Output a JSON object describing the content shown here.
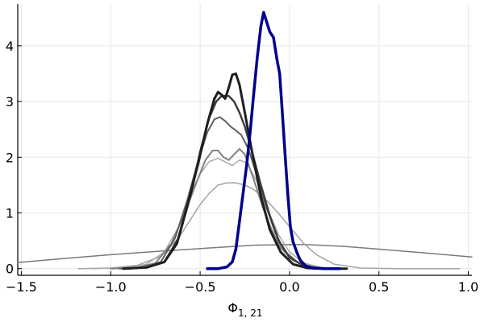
{
  "chart_data": {
    "type": "line",
    "title": "",
    "xlabel": "Φ",
    "xlabel_subscript": "1, 21",
    "ylabel": "",
    "xlim": [
      -1.52,
      1.02
    ],
    "ylim": [
      -0.12,
      4.75
    ],
    "grid": true,
    "legend": "none",
    "x_ticks": [
      -1.5,
      -1.0,
      -0.5,
      0.0,
      0.5,
      1.0
    ],
    "x_tick_labels": [
      "−1.5",
      "−1.0",
      "−0.5",
      "0.0",
      "0.5",
      "1.0"
    ],
    "y_ticks": [
      0,
      1,
      2,
      3,
      4
    ],
    "y_tick_labels": [
      "0",
      "1",
      "2",
      "3",
      "4"
    ],
    "series": [
      {
        "color": "#7a7a7a",
        "stroke": 1.5,
        "points": [
          [
            -1.52,
            0.11
          ],
          [
            -1.3,
            0.17
          ],
          [
            -1.0,
            0.25
          ],
          [
            -0.7,
            0.32
          ],
          [
            -0.4,
            0.38
          ],
          [
            -0.2,
            0.42
          ],
          [
            0.0,
            0.43
          ],
          [
            0.1,
            0.43
          ],
          [
            0.3,
            0.4
          ],
          [
            0.5,
            0.35
          ],
          [
            0.8,
            0.27
          ],
          [
            1.02,
            0.21
          ]
        ]
      },
      {
        "color": "#a3a3a3",
        "stroke": 1.5,
        "points": [
          [
            -1.18,
            0.0
          ],
          [
            -1.0,
            0.01
          ],
          [
            -0.85,
            0.06
          ],
          [
            -0.72,
            0.22
          ],
          [
            -0.62,
            0.55
          ],
          [
            -0.55,
            0.9
          ],
          [
            -0.5,
            1.15
          ],
          [
            -0.45,
            1.35
          ],
          [
            -0.4,
            1.5
          ],
          [
            -0.35,
            1.54
          ],
          [
            -0.3,
            1.54
          ],
          [
            -0.25,
            1.5
          ],
          [
            -0.2,
            1.42
          ],
          [
            -0.12,
            1.2
          ],
          [
            -0.05,
            0.95
          ],
          [
            0.02,
            0.68
          ],
          [
            0.08,
            0.45
          ],
          [
            0.15,
            0.25
          ],
          [
            0.25,
            0.08
          ],
          [
            0.4,
            0.01
          ],
          [
            0.6,
            0.0
          ],
          [
            0.95,
            0.0
          ]
        ]
      },
      {
        "color": "#aaaaaa",
        "stroke": 1.5,
        "points": [
          [
            -1.1,
            0.0
          ],
          [
            -0.9,
            0.02
          ],
          [
            -0.8,
            0.08
          ],
          [
            -0.7,
            0.3
          ],
          [
            -0.62,
            0.75
          ],
          [
            -0.56,
            1.3
          ],
          [
            -0.5,
            1.7
          ],
          [
            -0.45,
            1.92
          ],
          [
            -0.4,
            1.98
          ],
          [
            -0.35,
            1.9
          ],
          [
            -0.32,
            1.85
          ],
          [
            -0.28,
            1.95
          ],
          [
            -0.24,
            1.9
          ],
          [
            -0.18,
            1.55
          ],
          [
            -0.12,
            1.05
          ],
          [
            -0.06,
            0.6
          ],
          [
            0.0,
            0.3
          ],
          [
            0.08,
            0.1
          ],
          [
            0.18,
            0.02
          ],
          [
            0.3,
            0.0
          ]
        ]
      },
      {
        "color": "#808080",
        "stroke": 2,
        "points": [
          [
            -1.0,
            0.0
          ],
          [
            -0.85,
            0.02
          ],
          [
            -0.75,
            0.1
          ],
          [
            -0.66,
            0.45
          ],
          [
            -0.58,
            1.05
          ],
          [
            -0.52,
            1.55
          ],
          [
            -0.47,
            1.95
          ],
          [
            -0.43,
            2.12
          ],
          [
            -0.4,
            2.12
          ],
          [
            -0.37,
            2.0
          ],
          [
            -0.34,
            1.95
          ],
          [
            -0.31,
            2.05
          ],
          [
            -0.28,
            2.15
          ],
          [
            -0.25,
            2.05
          ],
          [
            -0.2,
            1.6
          ],
          [
            -0.15,
            1.1
          ],
          [
            -0.1,
            0.7
          ],
          [
            -0.05,
            0.38
          ],
          [
            0.02,
            0.15
          ],
          [
            0.1,
            0.04
          ],
          [
            0.22,
            0.0
          ]
        ]
      },
      {
        "color": "#5e5e5e",
        "stroke": 2,
        "points": [
          [
            -0.95,
            0.0
          ],
          [
            -0.82,
            0.02
          ],
          [
            -0.72,
            0.12
          ],
          [
            -0.64,
            0.55
          ],
          [
            -0.57,
            1.25
          ],
          [
            -0.51,
            1.95
          ],
          [
            -0.46,
            2.45
          ],
          [
            -0.42,
            2.68
          ],
          [
            -0.39,
            2.72
          ],
          [
            -0.36,
            2.65
          ],
          [
            -0.33,
            2.55
          ],
          [
            -0.3,
            2.48
          ],
          [
            -0.27,
            2.4
          ],
          [
            -0.23,
            2.15
          ],
          [
            -0.18,
            1.65
          ],
          [
            -0.13,
            1.1
          ],
          [
            -0.08,
            0.65
          ],
          [
            -0.03,
            0.32
          ],
          [
            0.05,
            0.1
          ],
          [
            0.15,
            0.01
          ],
          [
            0.25,
            0.0
          ]
        ]
      },
      {
        "color": "#3e3e3e",
        "stroke": 2.5,
        "points": [
          [
            -0.92,
            0.0
          ],
          [
            -0.8,
            0.02
          ],
          [
            -0.7,
            0.12
          ],
          [
            -0.62,
            0.55
          ],
          [
            -0.55,
            1.35
          ],
          [
            -0.5,
            2.1
          ],
          [
            -0.45,
            2.7
          ],
          [
            -0.41,
            3.0
          ],
          [
            -0.38,
            3.1
          ],
          [
            -0.34,
            3.1
          ],
          [
            -0.31,
            3.0
          ],
          [
            -0.28,
            2.8
          ],
          [
            -0.25,
            2.55
          ],
          [
            -0.21,
            2.1
          ],
          [
            -0.16,
            1.5
          ],
          [
            -0.11,
            0.95
          ],
          [
            -0.06,
            0.5
          ],
          [
            0.0,
            0.2
          ],
          [
            0.08,
            0.05
          ],
          [
            0.18,
            0.0
          ],
          [
            0.3,
            0.0
          ]
        ]
      },
      {
        "color": "#1e1e1e",
        "stroke": 3,
        "points": [
          [
            -0.93,
            0.0
          ],
          [
            -0.8,
            0.02
          ],
          [
            -0.7,
            0.12
          ],
          [
            -0.63,
            0.45
          ],
          [
            -0.57,
            1.15
          ],
          [
            -0.51,
            1.9
          ],
          [
            -0.46,
            2.6
          ],
          [
            -0.42,
            3.05
          ],
          [
            -0.4,
            3.17
          ],
          [
            -0.38,
            3.12
          ],
          [
            -0.36,
            3.05
          ],
          [
            -0.34,
            3.25
          ],
          [
            -0.32,
            3.48
          ],
          [
            -0.3,
            3.5
          ],
          [
            -0.28,
            3.3
          ],
          [
            -0.25,
            2.8
          ],
          [
            -0.21,
            2.1
          ],
          [
            -0.16,
            1.3
          ],
          [
            -0.11,
            0.7
          ],
          [
            -0.05,
            0.3
          ],
          [
            0.02,
            0.08
          ],
          [
            0.1,
            0.01
          ],
          [
            0.2,
            0.0
          ],
          [
            0.32,
            0.0
          ]
        ]
      },
      {
        "color": "#00008b",
        "stroke": 3.5,
        "points": [
          [
            -0.46,
            0.0
          ],
          [
            -0.4,
            0.0
          ],
          [
            -0.35,
            0.03
          ],
          [
            -0.32,
            0.12
          ],
          [
            -0.3,
            0.35
          ],
          [
            -0.28,
            0.85
          ],
          [
            -0.26,
            1.35
          ],
          [
            -0.24,
            1.85
          ],
          [
            -0.22,
            2.45
          ],
          [
            -0.2,
            3.15
          ],
          [
            -0.18,
            3.8
          ],
          [
            -0.16,
            4.35
          ],
          [
            -0.145,
            4.6
          ],
          [
            -0.13,
            4.45
          ],
          [
            -0.11,
            4.25
          ],
          [
            -0.09,
            4.15
          ],
          [
            -0.07,
            3.75
          ],
          [
            -0.055,
            3.5
          ],
          [
            -0.04,
            2.8
          ],
          [
            -0.025,
            2.05
          ],
          [
            -0.01,
            1.35
          ],
          [
            0.005,
            0.75
          ],
          [
            0.02,
            0.48
          ],
          [
            0.04,
            0.3
          ],
          [
            0.06,
            0.15
          ],
          [
            0.09,
            0.05
          ],
          [
            0.13,
            0.01
          ],
          [
            0.2,
            0.0
          ],
          [
            0.28,
            0.0
          ]
        ]
      }
    ]
  }
}
